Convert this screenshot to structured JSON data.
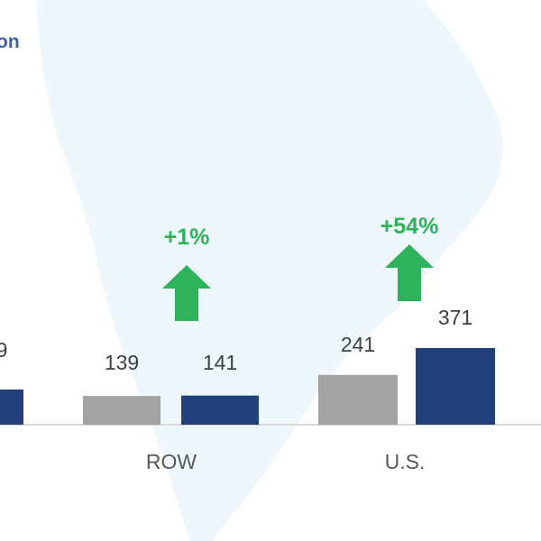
{
  "title_fragment": "on",
  "colors": {
    "prior_bar": "#a3a3a3",
    "current_bar": "#213f79",
    "growth": "#2fb35a",
    "title": "#3b63a8",
    "map": "#eef7fb",
    "axis": "#d9d9d9"
  },
  "chart_data": {
    "type": "bar",
    "categories": [
      "",
      "ROW",
      "U.S."
    ],
    "series": [
      {
        "values": [
          null,
          139,
          241
        ]
      },
      {
        "values": [
          null,
          141,
          371
        ]
      }
    ],
    "value_labels": [
      [
        "",
        "9"
      ],
      [
        "139",
        "141"
      ],
      [
        "241",
        "371"
      ]
    ],
    "growth_labels": [
      "",
      "+1%",
      "+54%"
    ],
    "growth_direction": "up",
    "ylim": [
      0,
      371
    ],
    "xlabel": "",
    "ylabel": "",
    "grid": false,
    "legend": "none"
  }
}
